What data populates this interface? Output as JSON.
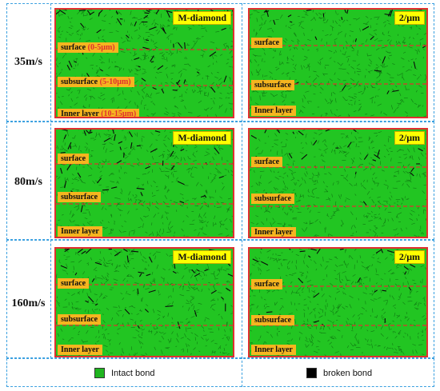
{
  "rows": [
    {
      "speed": "35m/s",
      "left": {
        "title": "M-diamond",
        "surface": "surface",
        "surface_range": "(0-5μm)",
        "subsurface": "subsurface",
        "subsurface_range": "(5-10μm)",
        "inner": "Inner layer",
        "inner_range": "(10-15μm)"
      },
      "right": {
        "title": "2/μm",
        "surface": "surface",
        "subsurface": "subsurface",
        "inner": "Inner layer"
      }
    },
    {
      "speed": "80m/s",
      "left": {
        "title": "M-diamond",
        "surface": "surface",
        "subsurface": "subsurface",
        "inner": "Inner layer"
      },
      "right": {
        "title": "2/μm",
        "surface": "surface",
        "subsurface": "subsurface",
        "inner": "Inner layer"
      }
    },
    {
      "speed": "160m/s",
      "left": {
        "title": "M-diamond",
        "surface": "surface",
        "subsurface": "subsurface",
        "inner": "Inner layer"
      },
      "right": {
        "title": "2/μm",
        "surface": "surface",
        "subsurface": "subsurface",
        "inner": "Inner layer"
      }
    }
  ],
  "legend": {
    "intact_label": "Intact bond",
    "intact_color": "#1fb51f",
    "broken_label": "broken bond",
    "broken_color": "#000000"
  },
  "colors": {
    "bond_field": "#22c522",
    "panel_border": "#e03030",
    "divider": "#e03030",
    "tag_bg": "#f5b51f",
    "title_bg": "#ffff00",
    "grid_lines": "#3aa0e0"
  }
}
